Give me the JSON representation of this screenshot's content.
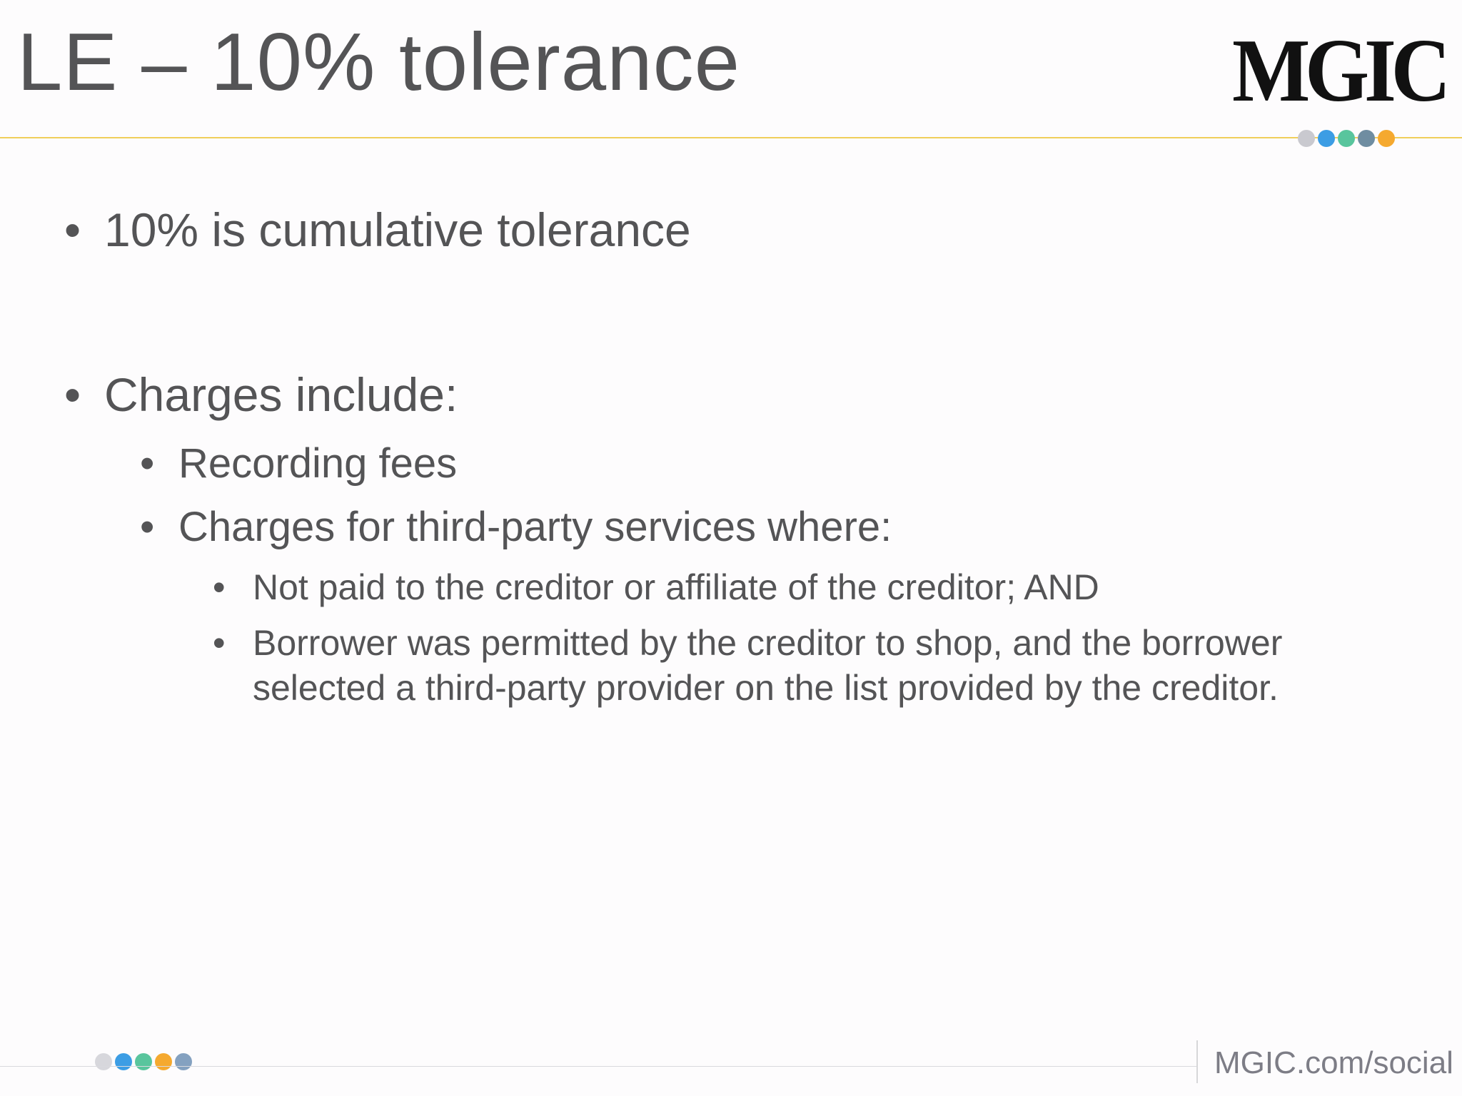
{
  "slide": {
    "title": "LE – 10% tolerance",
    "logo": "MGIC",
    "bullets": {
      "b1": "10% is cumulative tolerance",
      "b2": "Charges include:",
      "b3": "Recording fees",
      "b4": "Charges for third-party services where:",
      "b5": "Not paid to the creditor or affiliate of the creditor; AND",
      "b6": "Borrower was permitted by the creditor to shop, and the borrower selected a third-party provider on the list provided by the creditor."
    },
    "footer": {
      "link": "MGIC.com/social"
    }
  },
  "colors": {
    "title": "#545456",
    "accent_rule": "#f0cf5a",
    "dot_gray": "#c9c9cf",
    "dot_blue": "#3c9de4",
    "dot_green": "#59c59d",
    "dot_orange": "#f5a92f",
    "dot_slate": "#84a1c0",
    "dot_bluegray": "#6f8da1"
  }
}
